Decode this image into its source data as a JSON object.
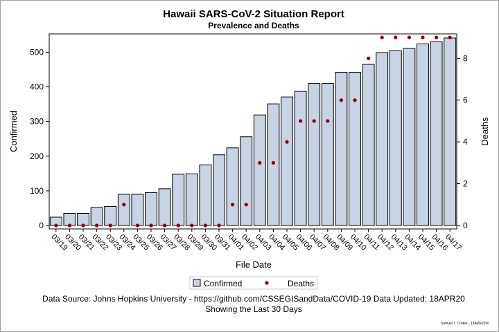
{
  "chart_data": {
    "type": "bar+scatter",
    "title": "Hawaii SARS-CoV-2 Situation Report",
    "subtitle": "Prevalence and Deaths",
    "xlabel": "File Date",
    "ylabel": "Confirmed",
    "y2label": "Deaths",
    "ylim": [
      0,
      560
    ],
    "y2lim": [
      0,
      9.1
    ],
    "yticks": [
      0,
      100,
      200,
      300,
      400,
      500
    ],
    "y2ticks": [
      0,
      2,
      4,
      6,
      8
    ],
    "categories": [
      "03/19",
      "03/20",
      "03/21",
      "03/22",
      "03/23",
      "03/24",
      "03/25",
      "03/26",
      "03/27",
      "03/28",
      "03/29",
      "03/30",
      "03/31",
      "04/01",
      "04/02",
      "04/03",
      "04/04",
      "04/05",
      "04/06",
      "04/07",
      "04/08",
      "04/09",
      "04/10",
      "04/11",
      "04/12",
      "04/13",
      "04/14",
      "04/15",
      "04/16",
      "04/17"
    ],
    "series": [
      {
        "name": "Confirmed",
        "type": "bar",
        "color": "#c8d3e3",
        "axis": "left",
        "values": [
          24,
          35,
          35,
          52,
          55,
          90,
          90,
          95,
          106,
          148,
          149,
          175,
          204,
          224,
          256,
          319,
          351,
          371,
          387,
          410,
          410,
          442,
          442,
          465,
          499,
          504,
          511,
          524,
          530,
          541
        ]
      },
      {
        "name": "Deaths",
        "type": "scatter",
        "color": "#8b0000",
        "axis": "right",
        "values": [
          0,
          0,
          0,
          0,
          0,
          1,
          0,
          0,
          0,
          0,
          0,
          0,
          0,
          1,
          1,
          3,
          3,
          4,
          5,
          5,
          5,
          6,
          6,
          8,
          9,
          9,
          9,
          9,
          9,
          9
        ]
      }
    ],
    "grid": false,
    "legend": "bottom-center"
  },
  "footnote": {
    "line1": "Data Source: Johns Hopkins University - https://github.com/CSSEGISandData/COVID-19 Data Updated: 18APR20",
    "line2": "Showing the Last 30 Days"
  },
  "credit": "Samuel T. Croker - 18APR2020"
}
